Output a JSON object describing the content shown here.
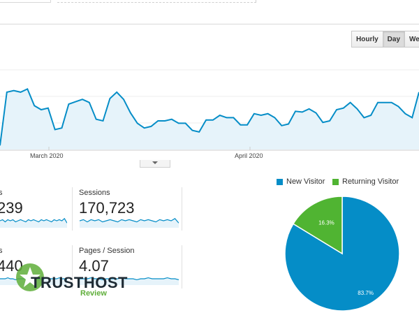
{
  "toolbar": {
    "buttons": [
      {
        "label": "Hourly",
        "active": false
      },
      {
        "label": "Day",
        "active": true
      },
      {
        "label": "Week",
        "active": false
      }
    ]
  },
  "chart_data": [
    {
      "type": "area",
      "x_tick_labels": [
        "March 2020",
        "April 2020"
      ],
      "values": [
        5,
        72,
        74,
        72,
        76,
        55,
        50,
        52,
        25,
        27,
        57,
        60,
        63,
        59,
        38,
        36,
        64,
        72,
        63,
        46,
        33,
        27,
        29,
        36,
        36,
        38,
        33,
        33,
        24,
        22,
        37,
        37,
        43,
        40,
        40,
        31,
        31,
        45,
        43,
        45,
        40,
        30,
        32,
        48,
        47,
        51,
        46,
        34,
        36,
        50,
        52,
        59,
        51,
        40,
        43,
        59,
        59,
        59,
        54,
        45,
        40,
        72
      ],
      "color": "#058dc7",
      "fill": "#e6f3fa"
    },
    {
      "type": "pie",
      "legend_position": "top",
      "slices": [
        {
          "name": "New Visitor",
          "value": 83.7,
          "label": "83.7%",
          "color": "#058dc7"
        },
        {
          "name": "Returning Visitor",
          "value": 16.3,
          "label": "16.3%",
          "color": "#50b432"
        }
      ]
    }
  ],
  "metrics": [
    {
      "label": "s",
      "value": "239",
      "spark": [
        5,
        6,
        4,
        6,
        5,
        6,
        4,
        5,
        6,
        5,
        4,
        6,
        5,
        6,
        5,
        4,
        6,
        5,
        6,
        5,
        4,
        6,
        5,
        6,
        5,
        7,
        3
      ]
    },
    {
      "label": "Sessions",
      "value": "170,723",
      "spark": [
        5,
        6,
        4,
        6,
        5,
        6,
        4,
        5,
        6,
        5,
        4,
        6,
        5,
        6,
        5,
        4,
        6,
        5,
        6,
        5,
        4,
        6,
        5,
        6,
        5,
        7,
        3
      ]
    },
    {
      "label": "s",
      "value": "440",
      "spark": [
        5,
        5,
        5,
        6,
        5,
        5,
        4,
        5,
        5,
        5,
        5,
        6,
        5,
        5,
        5,
        4,
        5,
        5,
        6,
        5,
        5,
        5,
        5,
        6,
        5,
        5,
        4
      ]
    },
    {
      "label": "Pages / Session",
      "value": "4.07",
      "spark": [
        5,
        5,
        5,
        6,
        5,
        5,
        4,
        5,
        5,
        5,
        5,
        6,
        5,
        5,
        5,
        4,
        5,
        5,
        6,
        5,
        5,
        5,
        5,
        6,
        5,
        5,
        4
      ]
    }
  ],
  "watermark": {
    "brand": "TRUSTHOST",
    "sub": "Review"
  }
}
